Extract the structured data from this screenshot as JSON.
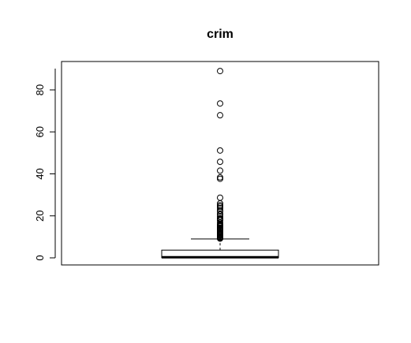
{
  "chart_data": {
    "type": "boxplot",
    "title": "crim",
    "xlabel": "",
    "ylabel": "",
    "ylim": [
      -3,
      93
    ],
    "yticks": [
      0,
      20,
      40,
      60,
      80
    ],
    "ytick_labels": [
      "0",
      "20",
      "40",
      "60",
      "80"
    ],
    "box": {
      "min": 0.006,
      "q1": 0.08,
      "median": 0.26,
      "q3": 3.68,
      "whisker_high": 9.0
    },
    "outliers": [
      88.98,
      73.53,
      67.92,
      51.14,
      45.75,
      41.53,
      38.35,
      37.66,
      28.66,
      25.94,
      25.05,
      24.39,
      23.65,
      22.6,
      22.05,
      20.85,
      20.72,
      19.61,
      18.81,
      18.5,
      18.08,
      17.87,
      16.81,
      15.86,
      15.58,
      15.29,
      15.02,
      14.43,
      14.33,
      14.05,
      13.92,
      13.68,
      13.52,
      13.36,
      12.8,
      12.25,
      12.05,
      11.95,
      11.58,
      11.16,
      11.11,
      11.09,
      10.83,
      10.67,
      10.23,
      10.06,
      9.92,
      9.82,
      9.72,
      9.6,
      9.51,
      9.39,
      9.33,
      9.23,
      9.18
    ]
  }
}
